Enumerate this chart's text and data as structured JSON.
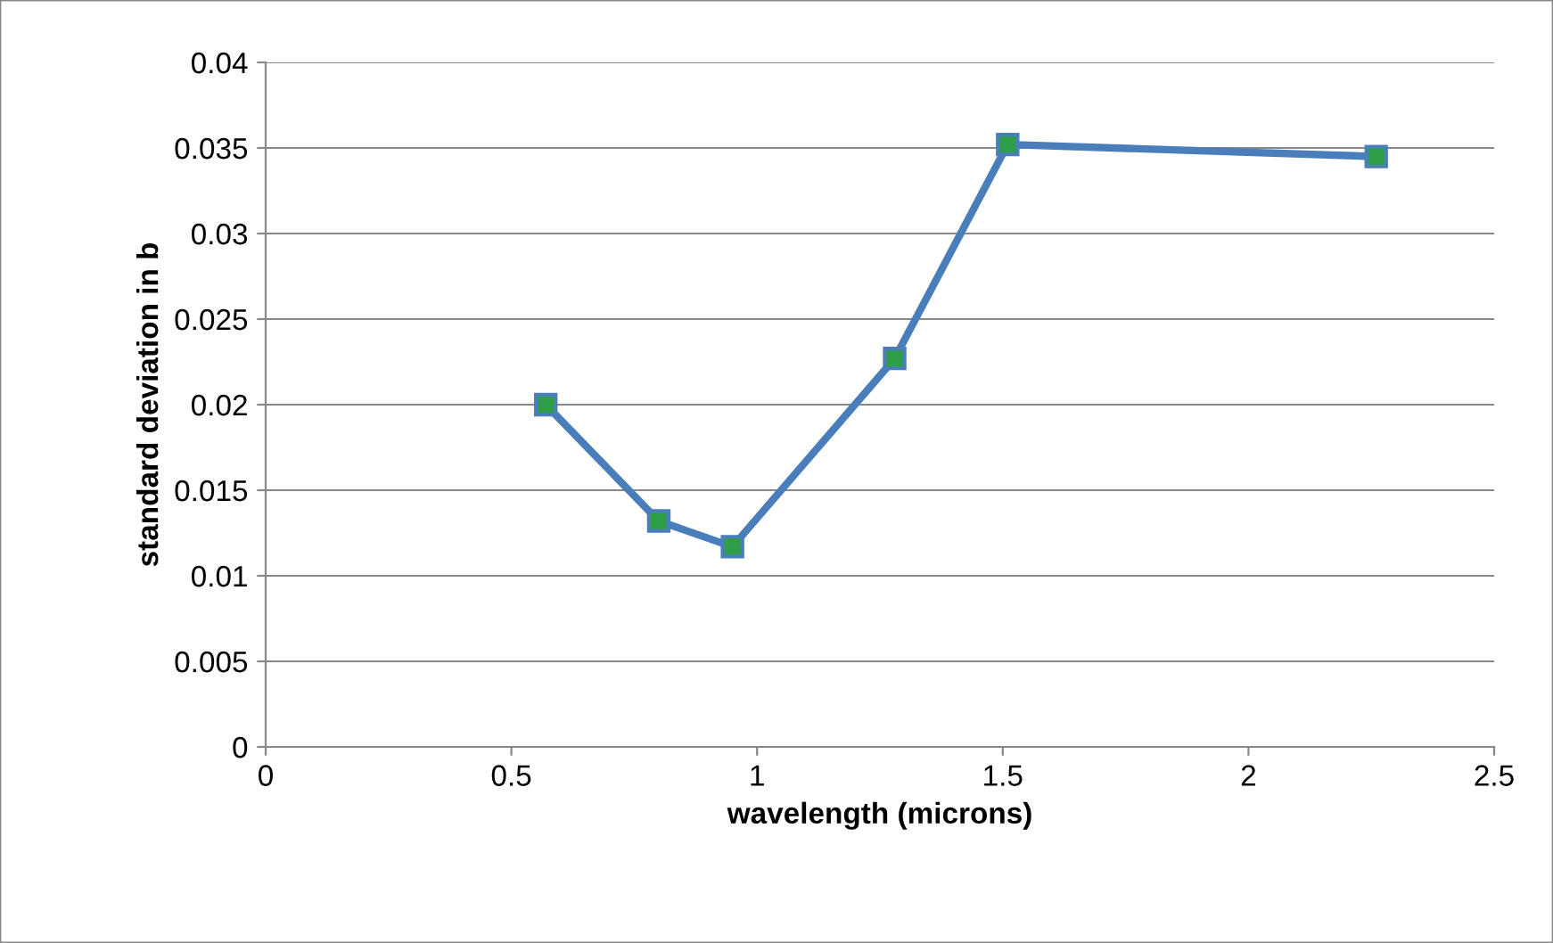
{
  "chart_data": {
    "type": "line",
    "xlabel": "wavelength (microns)",
    "ylabel": "standard deviation in b",
    "x": [
      0.57,
      0.8,
      0.95,
      1.28,
      1.51,
      2.26
    ],
    "series": [
      {
        "color": "#4a7ebb",
        "values": [
          0.02,
          0.0132,
          0.0117,
          0.0227,
          0.0352,
          0.0345
        ]
      }
    ],
    "xlim": [
      0,
      2.5
    ],
    "xticks": [
      0,
      0.5,
      1,
      1.5,
      2,
      2.5
    ],
    "ylim": [
      0,
      0.04
    ],
    "yticks": [
      0,
      0.005,
      0.01,
      0.015,
      0.02,
      0.025,
      0.03,
      0.035,
      0.04
    ],
    "grid": "y",
    "marker": "square",
    "line_style": "solid",
    "legend": false
  }
}
